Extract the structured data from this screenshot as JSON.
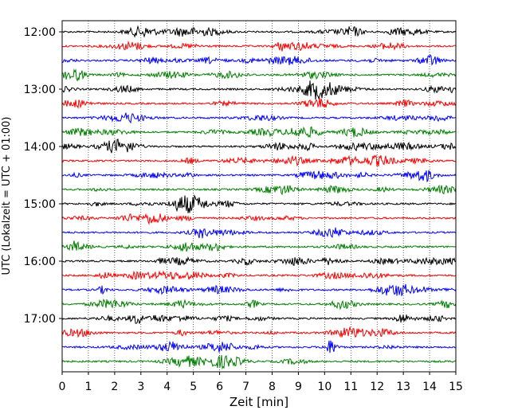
{
  "chart_data": {
    "type": "line",
    "title": "",
    "xlabel": "Zeit  [min]",
    "ylabel": "UTC (Lokalzeit = UTC + 01:00)",
    "xlim": [
      0,
      15
    ],
    "x_ticks": [
      "0",
      "1",
      "2",
      "3",
      "4",
      "5",
      "6",
      "7",
      "8",
      "9",
      "10",
      "11",
      "12",
      "13",
      "14",
      "15"
    ],
    "y_ticks": [
      "12:00",
      "13:00",
      "14:00",
      "15:00",
      "16:00",
      "17:00"
    ],
    "grid": "vertical dotted",
    "legend": "none",
    "trace_colors": [
      "#000000",
      "#ff0000",
      "#0000ff",
      "#008000"
    ],
    "traces_start": "12:00",
    "traces_end": "17:45",
    "trace_interval_min": 15,
    "trace_count": 24
  }
}
